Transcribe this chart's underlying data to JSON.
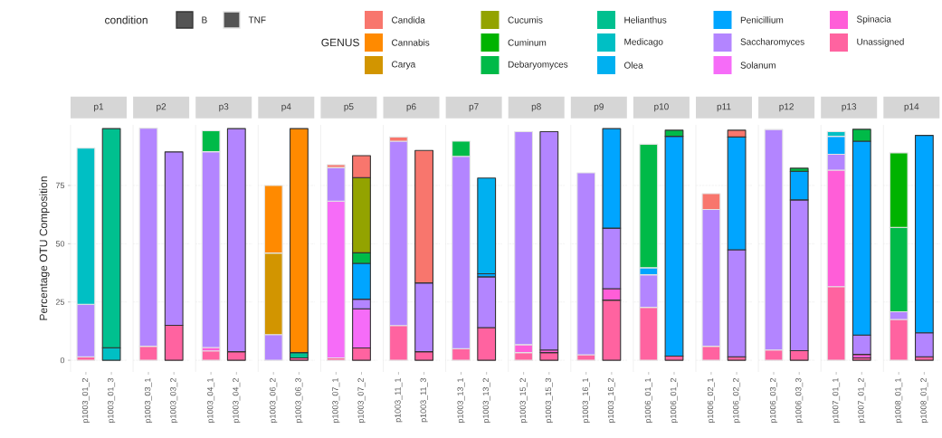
{
  "chart_data": [
    {
      "type": "other",
      "legend_title": "condition",
      "annotations": [
        "B",
        "TNF"
      ]
    },
    {
      "type": "bar",
      "stacked": true,
      "title": "p1",
      "ylabel": "Percentage OTU Composition",
      "legend_title": "GENUS",
      "legend": "top",
      "grid": "y",
      "categories": [
        "p1003_01_2",
        "p1003_01_3"
      ],
      "ylim": [
        -5,
        101
      ],
      "yticks": [
        0,
        25,
        50,
        75
      ],
      "series": [
        {
          "name": "Unassigned",
          "color": "#ff63a0",
          "values": [
            1.5,
            null
          ]
        },
        {
          "name": "Spinacia",
          "color": "#ff5ed8",
          "values": [
            null,
            null
          ]
        },
        {
          "name": "Solanum",
          "color": "#f66cf8",
          "values": [
            null,
            null
          ]
        },
        {
          "name": "Saccharomyces",
          "color": "#b385ff",
          "values": [
            22.5,
            null
          ]
        },
        {
          "name": "Penicillium",
          "color": "#00a5ff",
          "values": [
            null,
            null
          ]
        },
        {
          "name": "Olea",
          "color": "#00b0f0",
          "values": [
            null,
            null
          ]
        },
        {
          "name": "Medicago",
          "color": "#00bfc4",
          "values": [
            67,
            5.4
          ]
        },
        {
          "name": "Helianthus",
          "color": "#00c08f",
          "values": [
            null,
            94
          ]
        },
        {
          "name": "Debaryomyces",
          "color": "#00ba48",
          "values": [
            null,
            null
          ]
        },
        {
          "name": "Cuminum",
          "color": "#00b300",
          "values": [
            null,
            null
          ]
        },
        {
          "name": "Cucumis",
          "color": "#93a300",
          "values": [
            null,
            null
          ]
        },
        {
          "name": "Carya",
          "color": "#d29500",
          "values": [
            null,
            null
          ]
        },
        {
          "name": "Cannabis",
          "color": "#ff8a00",
          "values": [
            null,
            null
          ]
        },
        {
          "name": "Candida",
          "color": "#f8766d",
          "values": [
            null,
            null
          ]
        }
      ]
    },
    {
      "type": "bar",
      "stacked": true,
      "title": "p2",
      "grid": "y",
      "tick_labels": "x",
      "categories": [
        "p1003_03_1",
        "p1003_03_2"
      ],
      "ylim": [
        -5,
        101
      ],
      "yticks": [
        0,
        25,
        50,
        75
      ],
      "series": [
        {
          "color": "#ff63a0",
          "values": [
            6,
            15
          ]
        },
        {
          "color": "#b385ff",
          "values": [
            93.6,
            74.4
          ]
        }
      ]
    },
    {
      "type": "bar",
      "stacked": true,
      "title": "p3",
      "grid": "y",
      "tick_labels": "x",
      "categories": [
        "p1003_04_1",
        "p1003_04_2"
      ],
      "ylim": [
        -5,
        101
      ],
      "yticks": [
        0,
        25,
        50,
        75
      ],
      "series": [
        {
          "color": "#ff63a0",
          "values": [
            4,
            3.7
          ]
        },
        {
          "color": "#ff5ed8",
          "values": [
            1.5,
            null
          ]
        },
        {
          "color": "#b385ff",
          "values": [
            84,
            95.7
          ]
        },
        {
          "color": "#00ba48",
          "values": [
            9,
            null
          ]
        }
      ]
    },
    {
      "type": "bar",
      "stacked": true,
      "title": "p4",
      "grid": "y",
      "tick_labels": "x",
      "categories": [
        "p1003_06_2",
        "p1003_06_3"
      ],
      "ylim": [
        -5,
        101
      ],
      "yticks": [
        0,
        25,
        50,
        75
      ],
      "series": [
        {
          "color": "#ff63a0",
          "values": [
            null,
            1
          ]
        },
        {
          "color": "#b385ff",
          "values": [
            11,
            null
          ]
        },
        {
          "color": "#00c08f",
          "values": [
            null,
            2.3
          ]
        },
        {
          "color": "#d29500",
          "values": [
            35,
            null
          ]
        },
        {
          "color": "#ff8a00",
          "values": [
            29,
            96.1
          ]
        }
      ]
    },
    {
      "type": "bar",
      "stacked": true,
      "title": "p5",
      "grid": "y",
      "tick_labels": "x",
      "categories": [
        "p1003_07_1",
        "p1003_07_2"
      ],
      "ylim": [
        -5,
        101
      ],
      "yticks": [
        0,
        25,
        50,
        75
      ],
      "series": [
        {
          "color": "#ff63a0",
          "values": [
            1,
            5.3
          ]
        },
        {
          "color": "#f66cf8",
          "values": [
            67.3,
            16.8
          ]
        },
        {
          "color": "#b385ff",
          "values": [
            14.4,
            4.1
          ]
        },
        {
          "color": "#00a5ff",
          "values": [
            null,
            15.4
          ]
        },
        {
          "color": "#00ba48",
          "values": [
            null,
            4.5
          ]
        },
        {
          "color": "#93a300",
          "values": [
            null,
            32.3
          ]
        },
        {
          "color": "#f8766d",
          "values": [
            1.2,
            9.4
          ]
        }
      ]
    },
    {
      "type": "bar",
      "stacked": true,
      "title": "p6",
      "grid": "y",
      "tick_labels": "x",
      "categories": [
        "p1003_11_1",
        "p1003_11_3"
      ],
      "ylim": [
        -5,
        101
      ],
      "yticks": [
        0,
        25,
        50,
        75
      ],
      "series": [
        {
          "color": "#ff63a0",
          "values": [
            14.9,
            3.7
          ]
        },
        {
          "color": "#b385ff",
          "values": [
            79.1,
            29.5
          ]
        },
        {
          "color": "#f8766d",
          "values": [
            1.8,
            56.8
          ]
        }
      ]
    },
    {
      "type": "bar",
      "stacked": true,
      "title": "p7",
      "grid": "y",
      "tick_labels": "x",
      "categories": [
        "p1003_13_1",
        "p1003_13_2"
      ],
      "ylim": [
        -5,
        101
      ],
      "yticks": [
        0,
        25,
        50,
        75
      ],
      "series": [
        {
          "color": "#ff63a0",
          "values": [
            5,
            14
          ]
        },
        {
          "color": "#b385ff",
          "values": [
            82.5,
            21.8
          ]
        },
        {
          "color": "#00a5ff",
          "values": [
            null,
            1.3
          ]
        },
        {
          "color": "#00b0f0",
          "values": [
            null,
            41.1
          ]
        },
        {
          "color": "#00ba48",
          "values": [
            6.5,
            null
          ]
        }
      ]
    },
    {
      "type": "bar",
      "stacked": true,
      "title": "p8",
      "grid": "y",
      "tick_labels": "x",
      "categories": [
        "p1003_15_2",
        "p1003_15_3"
      ],
      "ylim": [
        -5,
        101
      ],
      "yticks": [
        0,
        25,
        50,
        75
      ],
      "series": [
        {
          "color": "#ff63a0",
          "values": [
            3.3,
            3.3
          ]
        },
        {
          "color": "#ff5ed8",
          "values": [
            3.4,
            1.1
          ]
        },
        {
          "color": "#b385ff",
          "values": [
            91.4,
            93.7
          ]
        }
      ]
    },
    {
      "type": "bar",
      "stacked": true,
      "title": "p9",
      "grid": "y",
      "tick_labels": "x",
      "categories": [
        "p1003_16_1",
        "p1003_16_2"
      ],
      "ylim": [
        -5,
        101
      ],
      "yticks": [
        0,
        25,
        50,
        75
      ],
      "series": [
        {
          "color": "#ff63a0",
          "values": [
            2.4,
            25.8
          ]
        },
        {
          "color": "#ff5ed8",
          "values": [
            null,
            4.9
          ]
        },
        {
          "color": "#b385ff",
          "values": [
            78,
            26
          ]
        },
        {
          "color": "#00a5ff",
          "values": [
            null,
            42.7
          ]
        }
      ]
    },
    {
      "type": "bar",
      "stacked": true,
      "title": "p10",
      "grid": "y",
      "tick_labels": "x",
      "categories": [
        "p1006_01_1",
        "p1006_01_2"
      ],
      "ylim": [
        -5,
        101
      ],
      "yticks": [
        0,
        25,
        50,
        75
      ],
      "series": [
        {
          "color": "#ff63a0",
          "values": [
            22.7,
            1.8
          ]
        },
        {
          "color": "#b385ff",
          "values": [
            14,
            null
          ]
        },
        {
          "color": "#00a5ff",
          "values": [
            3,
            94.3
          ]
        },
        {
          "color": "#00ba48",
          "values": [
            53,
            2.6
          ]
        }
      ]
    },
    {
      "type": "bar",
      "stacked": true,
      "title": "p11",
      "grid": "y",
      "tick_labels": "x",
      "categories": [
        "p1006_02_1",
        "p1006_02_2"
      ],
      "ylim": [
        -5,
        101
      ],
      "yticks": [
        0,
        25,
        50,
        75
      ],
      "series": [
        {
          "color": "#ff63a0",
          "values": [
            6,
            1.5
          ]
        },
        {
          "color": "#b385ff",
          "values": [
            58.7,
            45.9
          ]
        },
        {
          "color": "#00a5ff",
          "values": [
            null,
            48.4
          ]
        },
        {
          "color": "#f8766d",
          "values": [
            6.8,
            2.9
          ]
        }
      ]
    },
    {
      "type": "bar",
      "stacked": true,
      "title": "p12",
      "grid": "y",
      "tick_labels": "x",
      "categories": [
        "p1006_03_2",
        "p1006_03_3"
      ],
      "ylim": [
        -5,
        101
      ],
      "yticks": [
        0,
        25,
        50,
        75
      ],
      "series": [
        {
          "color": "#ff63a0",
          "values": [
            4.4,
            4.1
          ]
        },
        {
          "color": "#b385ff",
          "values": [
            94.6,
            64.7
          ]
        },
        {
          "color": "#00a5ff",
          "values": [
            null,
            12.3
          ]
        },
        {
          "color": "#00ba48",
          "values": [
            null,
            1.3
          ]
        }
      ]
    },
    {
      "type": "bar",
      "stacked": true,
      "title": "p13",
      "grid": "y",
      "tick_labels": "x",
      "categories": [
        "p1007_01_1",
        "p1007_01_2"
      ],
      "ylim": [
        -5,
        101
      ],
      "yticks": [
        0,
        25,
        50,
        75
      ],
      "series": [
        {
          "color": "#ff63a0",
          "values": [
            31.6,
            1
          ]
        },
        {
          "color": "#ff5ed8",
          "values": [
            50,
            1.5
          ]
        },
        {
          "color": "#b385ff",
          "values": [
            6.8,
            8.3
          ]
        },
        {
          "color": "#00a5ff",
          "values": [
            7.7,
            83.2
          ]
        },
        {
          "color": "#00bfc4",
          "values": [
            2,
            null
          ]
        },
        {
          "color": "#00ba48",
          "values": [
            null,
            5.1
          ]
        }
      ]
    },
    {
      "type": "bar",
      "stacked": true,
      "title": "p14",
      "grid": "y",
      "tick_labels": "x",
      "categories": [
        "p1008_01_1",
        "p1008_01_2"
      ],
      "ylim": [
        -5,
        101
      ],
      "yticks": [
        0,
        25,
        50,
        75
      ],
      "series": [
        {
          "color": "#ff63a0",
          "values": [
            17.5,
            1.5
          ]
        },
        {
          "color": "#b385ff",
          "values": [
            3.3,
            10.3
          ]
        },
        {
          "color": "#00a5ff",
          "values": [
            null,
            84.7
          ]
        },
        {
          "color": "#00ba48",
          "values": [
            36.2,
            null
          ]
        },
        {
          "color": "#00b300",
          "values": [
            32,
            null
          ]
        }
      ]
    }
  ]
}
